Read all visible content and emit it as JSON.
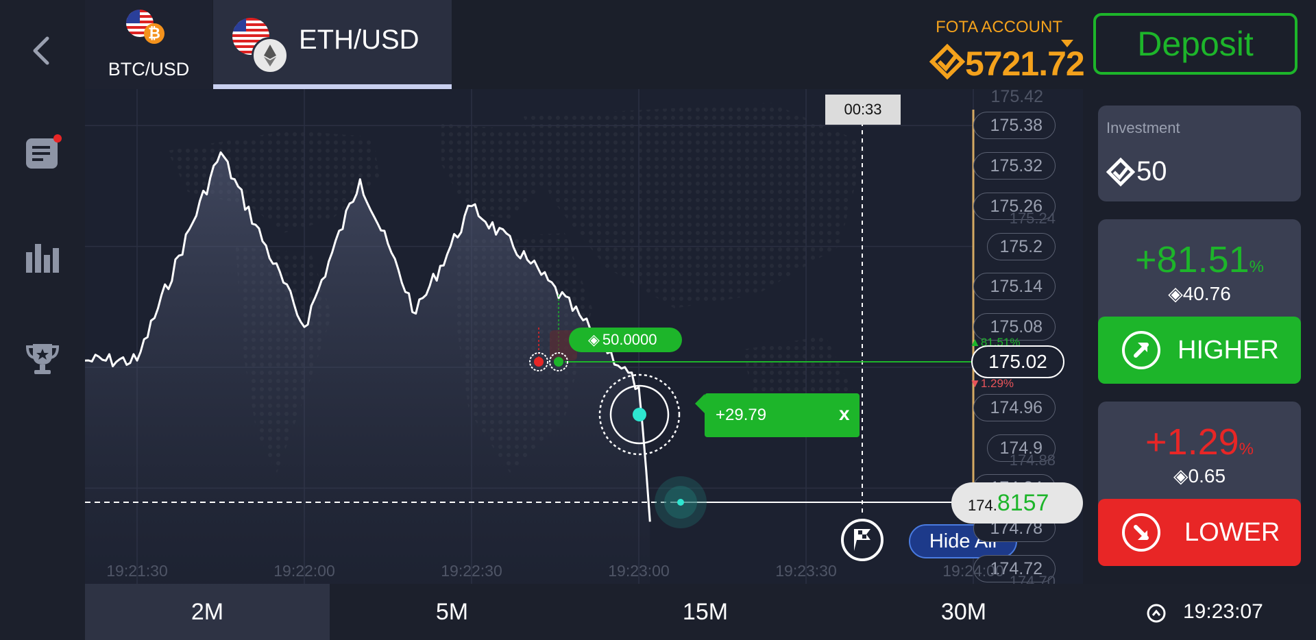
{
  "sidebar": {
    "items": [
      {
        "icon": "back-chevron-icon"
      },
      {
        "icon": "news-icon",
        "notification": true
      },
      {
        "icon": "bar-chart-icon"
      },
      {
        "icon": "trophy-icon"
      }
    ]
  },
  "header": {
    "tabs": [
      {
        "label": "BTC/USD",
        "active": false
      },
      {
        "label": "ETH/USD",
        "active": true
      }
    ],
    "account_label": "FOTA ACCOUNT",
    "balance": "5721.72",
    "deposit_label": "Deposit"
  },
  "chart": {
    "timer": "00:33",
    "current_price_prefix": "174.",
    "current_price_suffix": "8157",
    "strike_price": "175.02",
    "strike_up_pct": "81.51%",
    "strike_down_pct": "1.29%",
    "trade_amount_label": "50.0000",
    "profit_label": "+29.79",
    "close_label": "x",
    "hide_all_label": "Hide All",
    "price_labels": [
      "175.42",
      "175.38",
      "175.32",
      "175.26",
      "175.2",
      "175.14",
      "175.08",
      "174.96",
      "174.9",
      "174.84",
      "174.78",
      "174.72"
    ],
    "faint_labels": [
      "175.24",
      "174.88",
      "174.70"
    ],
    "time_labels": [
      "19:21:30",
      "19:22:00",
      "19:22:30",
      "19:23:00",
      "19:23:30",
      "19:24:00"
    ]
  },
  "chart_data": {
    "type": "line",
    "x": [
      "19:21:30",
      "19:21:45",
      "19:22:00",
      "19:22:10",
      "19:22:20",
      "19:22:30",
      "19:22:40",
      "19:22:50",
      "19:23:00",
      "19:23:02"
    ],
    "values": [
      175.03,
      175.34,
      175.08,
      175.3,
      175.1,
      175.26,
      175.18,
      175.09,
      174.99,
      174.79
    ],
    "ylim": [
      174.72,
      175.42
    ]
  },
  "timeframes": {
    "items": [
      {
        "label": "2M",
        "active": true
      },
      {
        "label": "5M",
        "active": false
      },
      {
        "label": "15M",
        "active": false
      },
      {
        "label": "30M",
        "active": false
      }
    ],
    "clock": "19:23:07"
  },
  "panel": {
    "investment_label": "Investment",
    "investment_value": "50",
    "higher_pct": "+81.51",
    "higher_pct_unit": "%",
    "higher_payout": "40.76",
    "higher_label": "HIGHER",
    "lower_pct": "+1.29",
    "lower_pct_unit": "%",
    "lower_payout": "0.65",
    "lower_label": "LOWER"
  },
  "colors": {
    "accent_green": "#1db52a",
    "accent_red": "#e82626",
    "accent_orange": "#f4a21c",
    "background": "#1b1f2b"
  }
}
